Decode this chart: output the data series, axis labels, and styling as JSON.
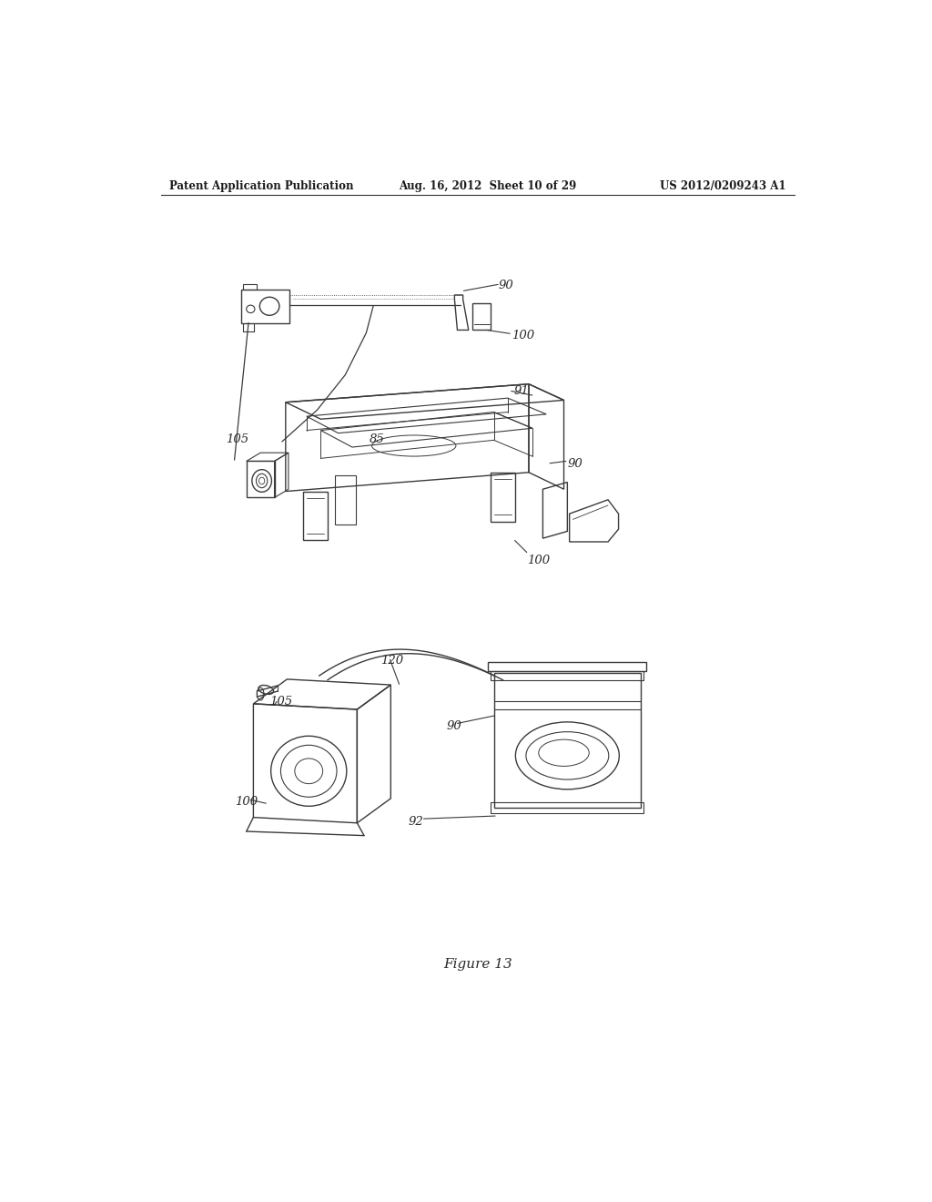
{
  "bg_color": "#ffffff",
  "header_left": "Patent Application Publication",
  "header_mid": "Aug. 16, 2012  Sheet 10 of 29",
  "header_right": "US 2012/0209243 A1",
  "figure_label": "Figure 13",
  "fig_width": 10.24,
  "fig_height": 13.2,
  "dpi": 100,
  "line_color": "#3a3a3a",
  "label_color": "#2a2a2a"
}
